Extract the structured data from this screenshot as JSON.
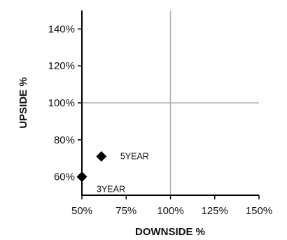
{
  "chart_data": {
    "type": "scatter",
    "title": "",
    "xlabel": "DOWNSIDE %",
    "ylabel": "UPSIDE %",
    "xlim": [
      50,
      150
    ],
    "ylim": [
      50,
      150
    ],
    "x_ticks": [
      50,
      75,
      100,
      125,
      150
    ],
    "y_ticks": [
      60,
      80,
      100,
      120,
      140
    ],
    "tick_suffix": "%",
    "reference_lines": {
      "x": 100,
      "y": 100
    },
    "grid": false,
    "marker": "diamond",
    "marker_color": "#000000",
    "reference_line_color": "#b0b0b0",
    "points": [
      {
        "label": "3YEAR",
        "x": 50,
        "y": 60
      },
      {
        "label": "5YEAR",
        "x": 61,
        "y": 71
      }
    ]
  }
}
